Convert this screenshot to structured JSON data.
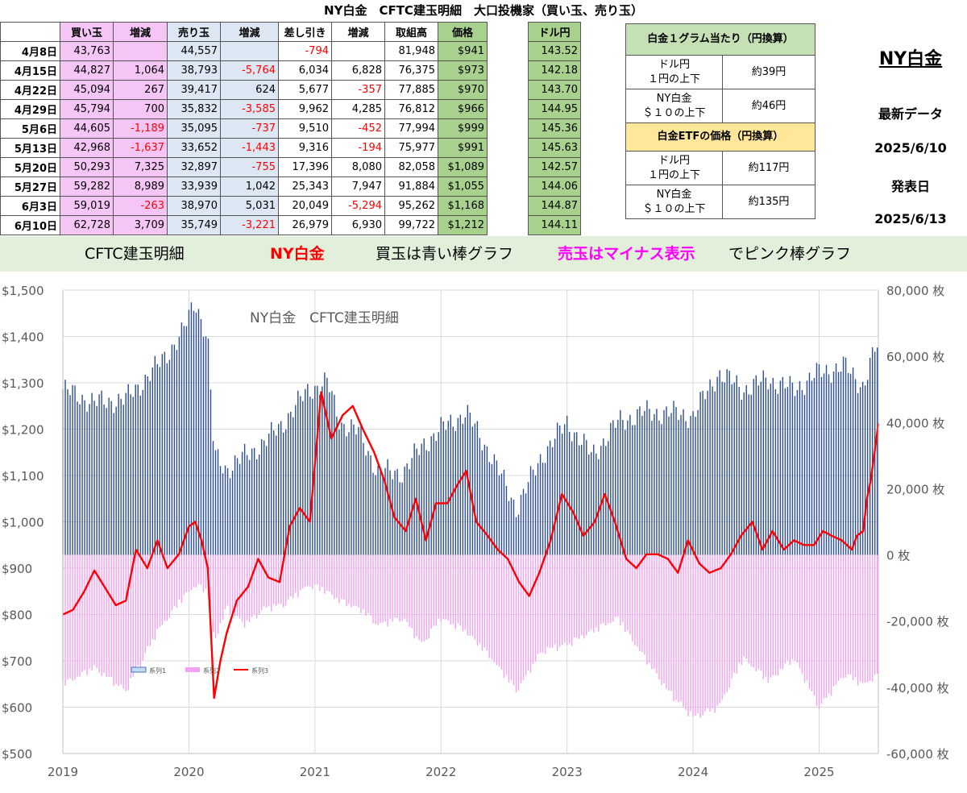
{
  "header": {
    "title": "NY白金　CFTC建玉明細　大口投機家（買い玉、売り玉）"
  },
  "table": {
    "columns": [
      "",
      "買い玉",
      "増減",
      "売り玉",
      "増減",
      "差し引き",
      "増減",
      "取組高",
      "価格",
      "",
      "ドル円"
    ],
    "rows": [
      [
        "4月8日",
        "43,763",
        "",
        "44,557",
        "",
        "-794",
        "",
        "81,948",
        "$941",
        "143.52"
      ],
      [
        "4月15日",
        "44,827",
        "1,064",
        "38,793",
        "-5,764",
        "6,034",
        "6,828",
        "76,375",
        "$973",
        "142.18"
      ],
      [
        "4月22日",
        "45,094",
        "267",
        "39,417",
        "624",
        "5,677",
        "-357",
        "77,885",
        "$970",
        "143.70"
      ],
      [
        "4月29日",
        "45,794",
        "700",
        "35,832",
        "-3,585",
        "9,962",
        "4,285",
        "76,812",
        "$966",
        "144.95"
      ],
      [
        "5月6日",
        "44,605",
        "-1,189",
        "35,095",
        "-737",
        "9,510",
        "-452",
        "77,994",
        "$999",
        "145.36"
      ],
      [
        "5月13日",
        "42,968",
        "-1,637",
        "33,652",
        "-1,443",
        "9,316",
        "-194",
        "75,977",
        "$991",
        "145.63"
      ],
      [
        "5月20日",
        "50,293",
        "7,325",
        "32,897",
        "-755",
        "17,396",
        "8,080",
        "82,058",
        "$1,089",
        "142.57"
      ],
      [
        "5月27日",
        "59,282",
        "8,989",
        "33,939",
        "1,042",
        "25,343",
        "7,947",
        "91,884",
        "$1,055",
        "144.06"
      ],
      [
        "6月3日",
        "59,019",
        "-263",
        "38,970",
        "5,031",
        "20,049",
        "-5,294",
        "95,262",
        "$1,168",
        "144.87"
      ],
      [
        "6月10日",
        "62,728",
        "3,709",
        "35,749",
        "-3,221",
        "26,979",
        "6,930",
        "99,722",
        "$1,212",
        "144.11"
      ]
    ]
  },
  "yen_box": {
    "gram_title": "白金１グラム当たり（円換算）",
    "etf_title": "白金ETFの価格（円換算）",
    "gram_rows": [
      {
        "label1": "ドル円",
        "label2": "１円の上下",
        "value": "約39円"
      },
      {
        "label1": "NY白金",
        "label2": "＄１０の上下",
        "value": "約46円"
      }
    ],
    "etf_rows": [
      {
        "label1": "ドル円",
        "label2": "１円の上下",
        "value": "約117円"
      },
      {
        "label1": "NY白金",
        "label2": "＄１０の上下",
        "value": "約135円"
      }
    ]
  },
  "side": {
    "name": "NY白金",
    "latest": "最新データ",
    "latest_date": "2025/6/10",
    "release": "発表日",
    "release_date": "2025/6/13"
  },
  "banner": {
    "part1": "CFTC建玉明細",
    "part2": "NY白金",
    "part3": "買玉は青い棒グラフ",
    "part4": "売玉はマイナス表示",
    "part5": "でピンク棒グラフ"
  },
  "colors": {
    "buy_bar": "#2e4e8f",
    "sell_bar": "#f3a1f3",
    "price_line": "#ff0000",
    "negative_text": "#ff0000",
    "banner_highlight": "#ff00ff"
  },
  "chart_data": {
    "type": "bar",
    "title": "NY白金　CFTC建玉明細",
    "x_ticks": [
      "2019",
      "2020",
      "2021",
      "2022",
      "2023",
      "2024",
      "2025"
    ],
    "x_range": [
      2019.0,
      2025.47
    ],
    "left_axis": {
      "ticks": [
        "$500",
        "$600",
        "$700",
        "$800",
        "$900",
        "$1,000",
        "$1,100",
        "$1,200",
        "$1,300",
        "$1,400",
        "$1,500"
      ],
      "range": [
        500,
        1500
      ]
    },
    "right_axis": {
      "ticks": [
        "-60,000 枚",
        "-40,000 枚",
        "-20,000 枚",
        "0 枚",
        "20,000 枚",
        "40,000 枚",
        "60,000 枚",
        "80,000 枚"
      ],
      "range": [
        -60000,
        80000
      ]
    },
    "legend": [
      "系列1",
      "系列2",
      "系列3"
    ],
    "grid": true,
    "series": [
      {
        "name": "系列1",
        "type": "bar",
        "axis": "right",
        "x": [
          2019.0,
          2019.25,
          2019.5,
          2019.75,
          2019.95,
          2020.05,
          2020.15,
          2020.2,
          2020.3,
          2020.45,
          2020.6,
          2020.75,
          2020.95,
          2021.1,
          2021.2,
          2021.35,
          2021.5,
          2021.7,
          2021.85,
          2022.0,
          2022.2,
          2022.4,
          2022.6,
          2022.8,
          2023.0,
          2023.2,
          2023.4,
          2023.6,
          2023.8,
          2024.0,
          2024.2,
          2024.4,
          2024.6,
          2024.8,
          2025.0,
          2025.2,
          2025.35,
          2025.45
        ],
        "values": [
          50000,
          46000,
          47000,
          57000,
          67000,
          77000,
          65000,
          30000,
          26000,
          30000,
          34000,
          40000,
          50000,
          52000,
          40000,
          37000,
          25000,
          25000,
          33000,
          38000,
          43000,
          30000,
          14000,
          30000,
          40000,
          30000,
          40000,
          43000,
          43000,
          42000,
          55000,
          50000,
          53000,
          50000,
          55000,
          57000,
          51000,
          62728
        ]
      },
      {
        "name": "系列2",
        "type": "bar",
        "axis": "right",
        "x": [
          2019.0,
          2019.25,
          2019.5,
          2019.75,
          2019.95,
          2020.05,
          2020.15,
          2020.2,
          2020.3,
          2020.45,
          2020.6,
          2020.75,
          2020.95,
          2021.1,
          2021.2,
          2021.35,
          2021.5,
          2021.7,
          2021.85,
          2022.0,
          2022.2,
          2022.4,
          2022.6,
          2022.8,
          2023.0,
          2023.2,
          2023.4,
          2023.6,
          2023.8,
          2024.0,
          2024.2,
          2024.4,
          2024.6,
          2024.8,
          2025.0,
          2025.2,
          2025.35,
          2025.45
        ],
        "values": [
          -38000,
          -33000,
          -40000,
          -22000,
          -12000,
          -8000,
          -10000,
          -25000,
          -15000,
          -20000,
          -15000,
          -14000,
          -8000,
          -10000,
          -13000,
          -15000,
          -20000,
          -18000,
          -26000,
          -18000,
          -22000,
          -30000,
          -40000,
          -28000,
          -26000,
          -22000,
          -18000,
          -29000,
          -40000,
          -48000,
          -45000,
          -30000,
          -37000,
          -30000,
          -45000,
          -35000,
          -38000,
          -35749
        ]
      },
      {
        "name": "系列3",
        "type": "line",
        "axis": "left",
        "x": [
          2019.0,
          2019.08,
          2019.17,
          2019.25,
          2019.33,
          2019.42,
          2019.5,
          2019.58,
          2019.67,
          2019.75,
          2019.83,
          2019.92,
          2020.0,
          2020.05,
          2020.1,
          2020.15,
          2020.2,
          2020.25,
          2020.3,
          2020.38,
          2020.47,
          2020.55,
          2020.63,
          2020.72,
          2020.8,
          2020.88,
          2020.96,
          2021.05,
          2021.13,
          2021.22,
          2021.3,
          2021.38,
          2021.47,
          2021.55,
          2021.63,
          2021.72,
          2021.8,
          2021.88,
          2021.96,
          2022.05,
          2022.13,
          2022.2,
          2022.28,
          2022.37,
          2022.45,
          2022.53,
          2022.62,
          2022.7,
          2022.78,
          2022.87,
          2022.96,
          2023.05,
          2023.13,
          2023.22,
          2023.3,
          2023.38,
          2023.47,
          2023.55,
          2023.63,
          2023.72,
          2023.8,
          2023.88,
          2023.96,
          2024.05,
          2024.13,
          2024.22,
          2024.3,
          2024.38,
          2024.47,
          2024.55,
          2024.63,
          2024.72,
          2024.8,
          2024.88,
          2024.96,
          2025.03,
          2025.1,
          2025.18,
          2025.26,
          2025.3,
          2025.35,
          2025.38,
          2025.41,
          2025.44,
          2025.47
        ],
        "values": [
          800,
          810,
          850,
          895,
          860,
          820,
          830,
          940,
          900,
          960,
          900,
          930,
          990,
          1000,
          960,
          900,
          620,
          700,
          760,
          830,
          860,
          920,
          880,
          870,
          990,
          1030,
          1000,
          1280,
          1180,
          1230,
          1250,
          1200,
          1150,
          1090,
          1010,
          980,
          1050,
          960,
          1040,
          1040,
          1080,
          1110,
          1000,
          970,
          940,
          920,
          870,
          840,
          890,
          960,
          1060,
          1020,
          970,
          1000,
          1060,
          1000,
          920,
          900,
          930,
          930,
          920,
          890,
          960,
          910,
          890,
          900,
          930,
          970,
          1000,
          940,
          980,
          940,
          960,
          950,
          950,
          980,
          970,
          960,
          940,
          970,
          980,
          1050,
          1090,
          1150,
          1212
        ]
      }
    ]
  }
}
